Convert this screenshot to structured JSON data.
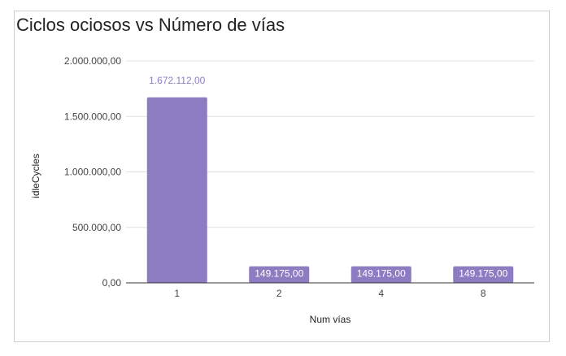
{
  "chart_data": {
    "type": "bar",
    "title": "Ciclos ociosos vs Número de vías",
    "xlabel": "Num vías",
    "ylabel": "idleCycles",
    "categories": [
      "1",
      "2",
      "4",
      "8"
    ],
    "values": [
      1672112,
      149175,
      149175,
      149175
    ],
    "data_labels": [
      "1.672.112,00",
      "149.175,00",
      "149.175,00",
      "149.175,00"
    ],
    "yticks": [
      0,
      500000,
      1000000,
      1500000,
      2000000
    ],
    "ytick_labels": [
      "0,00",
      "500.000,00",
      "1.000.000,00",
      "1.500.000,00",
      "2.000.000,00"
    ],
    "ylim": [
      0,
      2000000
    ],
    "grid": true,
    "legend": "none",
    "colors": {
      "bar": "#8e7cc3",
      "grid": "#e0e0e0",
      "axis": "#333333"
    }
  }
}
